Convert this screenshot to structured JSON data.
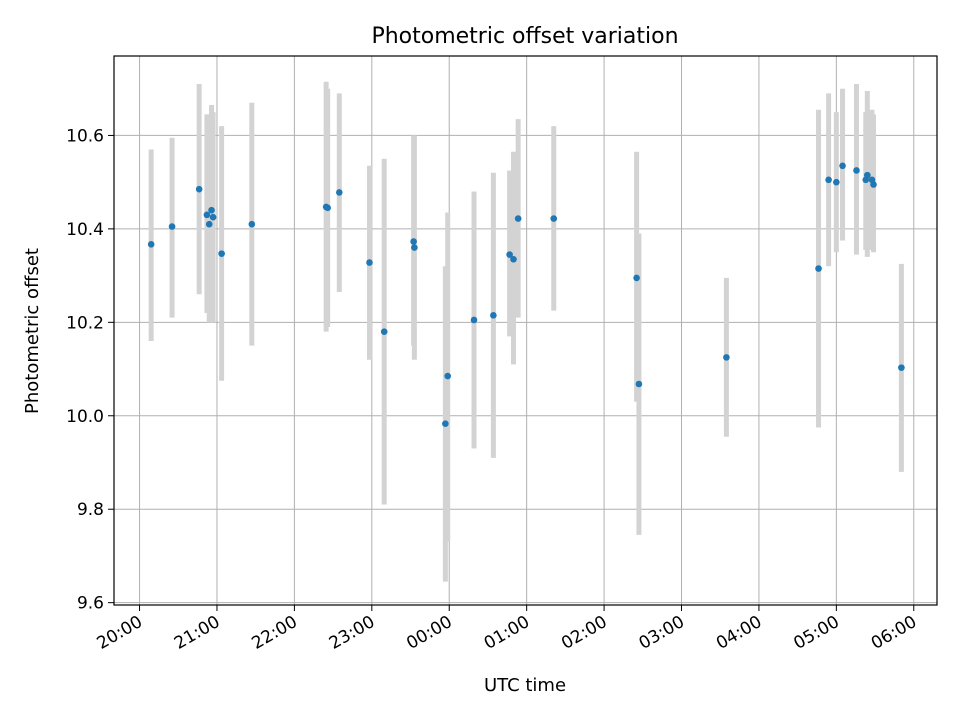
{
  "chart_data": {
    "type": "scatter",
    "title": "Photometric offset variation",
    "xlabel": "UTC time",
    "ylabel": "Photometric offset",
    "x_unit": "hours (UTC, after 20:00 of first night)",
    "xlim": [
      -0.33,
      10.3
    ],
    "ylim": [
      9.595,
      10.77
    ],
    "grid": true,
    "xticks": [
      {
        "value": 0,
        "label": "20:00"
      },
      {
        "value": 1,
        "label": "21:00"
      },
      {
        "value": 2,
        "label": "22:00"
      },
      {
        "value": 3,
        "label": "23:00"
      },
      {
        "value": 4,
        "label": "00:00"
      },
      {
        "value": 5,
        "label": "01:00"
      },
      {
        "value": 6,
        "label": "02:00"
      },
      {
        "value": 7,
        "label": "03:00"
      },
      {
        "value": 8,
        "label": "04:00"
      },
      {
        "value": 9,
        "label": "05:00"
      },
      {
        "value": 10,
        "label": "06:00"
      }
    ],
    "yticks": [
      {
        "value": 9.6,
        "label": "9.6"
      },
      {
        "value": 9.8,
        "label": "9.8"
      },
      {
        "value": 10.0,
        "label": "10.0"
      },
      {
        "value": 10.2,
        "label": "10.2"
      },
      {
        "value": 10.4,
        "label": "10.4"
      },
      {
        "value": 10.6,
        "label": "10.6"
      }
    ],
    "points_color": "#1f77b4",
    "errorbar_color": "#d3d3d3",
    "points": [
      {
        "x": 0.15,
        "y": 10.367,
        "low": 10.16,
        "high": 10.57
      },
      {
        "x": 0.42,
        "y": 10.405,
        "low": 10.21,
        "high": 10.595
      },
      {
        "x": 0.77,
        "y": 10.485,
        "low": 10.26,
        "high": 10.71
      },
      {
        "x": 0.87,
        "y": 10.43,
        "low": 10.22,
        "high": 10.645
      },
      {
        "x": 0.9,
        "y": 10.41,
        "low": 10.2,
        "high": 10.645
      },
      {
        "x": 0.93,
        "y": 10.44,
        "low": 10.21,
        "high": 10.665
      },
      {
        "x": 0.95,
        "y": 10.425,
        "low": 10.2,
        "high": 10.65
      },
      {
        "x": 1.06,
        "y": 10.347,
        "low": 10.075,
        "high": 10.62
      },
      {
        "x": 1.45,
        "y": 10.41,
        "low": 10.15,
        "high": 10.67
      },
      {
        "x": 2.41,
        "y": 10.447,
        "low": 10.18,
        "high": 10.715
      },
      {
        "x": 2.43,
        "y": 10.445,
        "low": 10.19,
        "high": 10.7
      },
      {
        "x": 2.58,
        "y": 10.478,
        "low": 10.265,
        "high": 10.69
      },
      {
        "x": 2.97,
        "y": 10.328,
        "low": 10.12,
        "high": 10.535
      },
      {
        "x": 3.16,
        "y": 10.18,
        "low": 9.81,
        "high": 10.55
      },
      {
        "x": 3.54,
        "y": 10.373,
        "low": 10.15,
        "high": 10.6
      },
      {
        "x": 3.55,
        "y": 10.36,
        "low": 10.12,
        "high": 10.6
      },
      {
        "x": 3.95,
        "y": 9.983,
        "low": 9.645,
        "high": 10.32
      },
      {
        "x": 3.98,
        "y": 10.085,
        "low": 9.73,
        "high": 10.435
      },
      {
        "x": 4.32,
        "y": 10.205,
        "low": 9.93,
        "high": 10.48
      },
      {
        "x": 4.57,
        "y": 10.215,
        "low": 9.91,
        "high": 10.52
      },
      {
        "x": 4.78,
        "y": 10.345,
        "low": 10.17,
        "high": 10.525
      },
      {
        "x": 4.83,
        "y": 10.335,
        "low": 10.11,
        "high": 10.565
      },
      {
        "x": 4.89,
        "y": 10.422,
        "low": 10.21,
        "high": 10.635
      },
      {
        "x": 5.35,
        "y": 10.422,
        "low": 10.225,
        "high": 10.62
      },
      {
        "x": 6.42,
        "y": 10.295,
        "low": 10.03,
        "high": 10.565
      },
      {
        "x": 6.45,
        "y": 10.068,
        "low": 9.745,
        "high": 10.39
      },
      {
        "x": 7.58,
        "y": 10.125,
        "low": 9.955,
        "high": 10.295
      },
      {
        "x": 8.77,
        "y": 10.315,
        "low": 9.975,
        "high": 10.655
      },
      {
        "x": 8.9,
        "y": 10.505,
        "low": 10.32,
        "high": 10.69
      },
      {
        "x": 9.0,
        "y": 10.5,
        "low": 10.35,
        "high": 10.65
      },
      {
        "x": 9.08,
        "y": 10.535,
        "low": 10.375,
        "high": 10.7
      },
      {
        "x": 9.26,
        "y": 10.525,
        "low": 10.345,
        "high": 10.71
      },
      {
        "x": 9.38,
        "y": 10.505,
        "low": 10.355,
        "high": 10.65
      },
      {
        "x": 9.4,
        "y": 10.515,
        "low": 10.34,
        "high": 10.695
      },
      {
        "x": 9.46,
        "y": 10.505,
        "low": 10.355,
        "high": 10.655
      },
      {
        "x": 9.48,
        "y": 10.495,
        "low": 10.35,
        "high": 10.645
      },
      {
        "x": 9.84,
        "y": 10.103,
        "low": 9.88,
        "high": 10.325
      }
    ]
  }
}
